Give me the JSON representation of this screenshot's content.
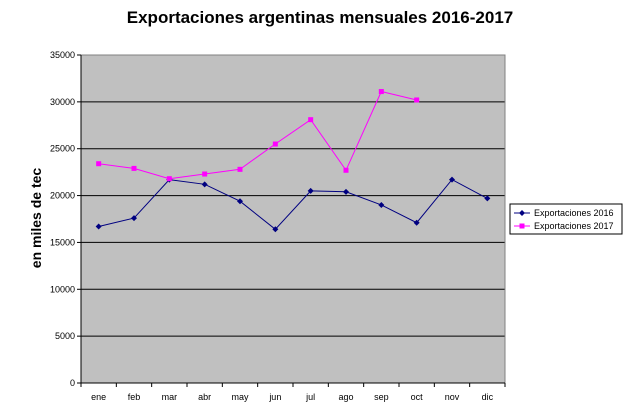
{
  "chart_data": {
    "type": "line",
    "title": "Exportaciones argentinas mensuales 2016-2017",
    "xlabel": "",
    "ylabel": "en miles de tec",
    "categories": [
      "ene",
      "feb",
      "mar",
      "abr",
      "may",
      "jun",
      "jul",
      "ago",
      "sep",
      "oct",
      "nov",
      "dic"
    ],
    "ylim": [
      0,
      35000
    ],
    "yticks": [
      "0",
      "5000",
      "10000",
      "15000",
      "20000",
      "25000",
      "30000",
      "35000"
    ],
    "grid": true,
    "legend_position": "right",
    "background": "#c0c0c0",
    "series": [
      {
        "name": "Exportaciones 2016",
        "color": "#000080",
        "marker": "diamond",
        "values": [
          16700,
          17600,
          21700,
          21200,
          19400,
          16400,
          20500,
          20400,
          19000,
          17100,
          21700,
          19700
        ]
      },
      {
        "name": "Exportaciones 2017",
        "color": "#ff00ff",
        "marker": "square",
        "values": [
          23400,
          22900,
          21800,
          22300,
          22800,
          25500,
          28100,
          22700,
          31100,
          30200,
          null,
          null
        ]
      }
    ]
  }
}
